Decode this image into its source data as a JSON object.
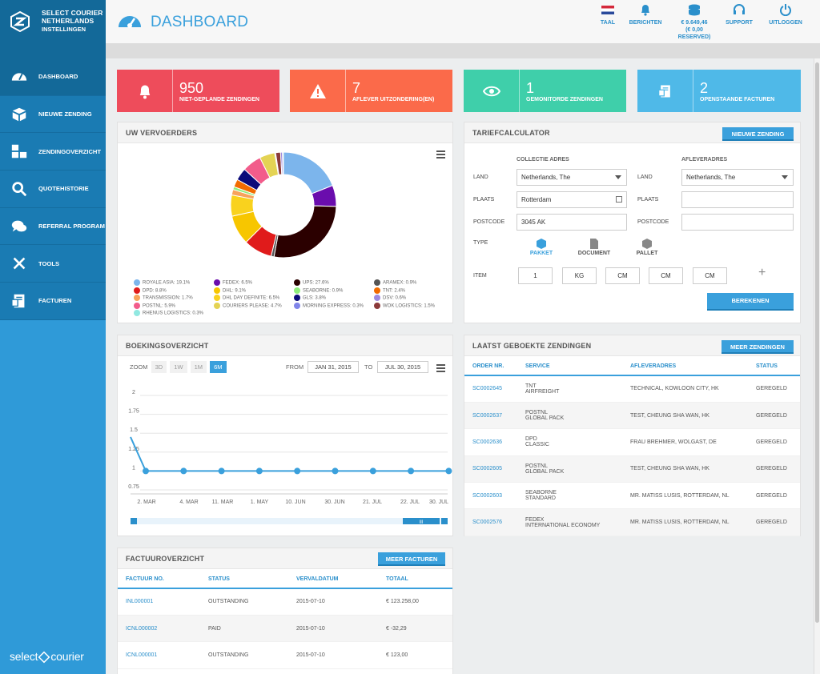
{
  "brand": {
    "line1": "SELECT COURIER",
    "line2": "NETHERLANDS",
    "sub": "INSTELLINGEN",
    "footer_left": "select",
    "footer_right": "courier"
  },
  "nav": [
    {
      "label": "DASHBOARD",
      "icon": "dashboard-icon"
    },
    {
      "label": "NIEUWE ZENDING",
      "icon": "box-icon"
    },
    {
      "label": "ZENDINGOVERZICHT",
      "icon": "boxes-icon"
    },
    {
      "label": "QUOTEHISTORIE",
      "icon": "search-icon"
    },
    {
      "label": "REFERRAL PROGRAM",
      "icon": "chat-icon"
    },
    {
      "label": "TOOLS",
      "icon": "tools-icon"
    },
    {
      "label": "FACTUREN",
      "icon": "invoice-icon"
    }
  ],
  "header": {
    "title": "DASHBOARD"
  },
  "top_actions": {
    "taal": "TAAL",
    "berichten": "BERICHTEN",
    "balance_1": "€ 9.649,46",
    "balance_2": "(€ 0,00",
    "balance_3": "RESERVED)",
    "support": "SUPPORT",
    "uitloggen": "UITLOGGEN"
  },
  "stats": [
    {
      "num": "950",
      "label": "NIET-GEPLANDE ZENDINGEN",
      "color": "#ee4c5b",
      "icon": "bell-icon"
    },
    {
      "num": "7",
      "label": "AFLEVER UITZONDERING(EN)",
      "color": "#fb6a4a",
      "icon": "warning-icon"
    },
    {
      "num": "1",
      "label": "GEMONITORDE ZENDINGEN",
      "color": "#3fcfaa",
      "icon": "eye-icon"
    },
    {
      "num": "2",
      "label": "OPENSTAANDE FACTUREN",
      "color": "#4fb9e8",
      "icon": "invoice-icon"
    }
  ],
  "carriers": {
    "title": "UW VERVOERDERS",
    "items": [
      {
        "label": "ROYALE ASIA: 19.1%",
        "value": 19.1,
        "color": "#7cb5ec"
      },
      {
        "label": "FEDEX: 6.5%",
        "value": 6.5,
        "color": "#6a0dad"
      },
      {
        "label": "UPS: 27.6%",
        "value": 27.6,
        "color": "#2b0000"
      },
      {
        "label": "ARAMEX: 0.9%",
        "value": 0.9,
        "color": "#555555"
      },
      {
        "label": "DPD: 8.8%",
        "value": 8.8,
        "color": "#e01b1b"
      },
      {
        "label": "DHL: 9.1%",
        "value": 9.1,
        "color": "#f7c600"
      },
      {
        "label": "SEABORNE: 0.9%",
        "value": 0.9,
        "color": "#90ed7d"
      },
      {
        "label": "TNT: 2.4%",
        "value": 2.4,
        "color": "#f26b00"
      },
      {
        "label": "TRANSMISSION: 1.7%",
        "value": 1.7,
        "color": "#f7a35c"
      },
      {
        "label": "DHL DAY DEFINITE: 6.5%",
        "value": 6.5,
        "color": "#f9d21e"
      },
      {
        "label": "GLS: 3.8%",
        "value": 3.8,
        "color": "#0b0b7a"
      },
      {
        "label": "DSV: 0.6%",
        "value": 0.6,
        "color": "#9e8be0"
      },
      {
        "label": "POSTNL: 5.9%",
        "value": 5.9,
        "color": "#f25c8b"
      },
      {
        "label": "COURIERS PLEASE: 4.7%",
        "value": 4.7,
        "color": "#e4d354"
      },
      {
        "label": "MORNING EXPRESS: 0.3%",
        "value": 0.3,
        "color": "#8085e9"
      },
      {
        "label": "WOK LOGISTICS: 1.5%",
        "value": 1.5,
        "color": "#8b3a3a"
      },
      {
        "label": "RHENUS LOGISTICS: 0.3%",
        "value": 0.3,
        "color": "#91e8e1"
      }
    ]
  },
  "calculator": {
    "title": "TARIEFCALCULATOR",
    "new_button": "NIEUWE ZENDING",
    "collectie": "COLLECTIE ADRES",
    "aflever": "AFLEVERADRES",
    "land": "LAND",
    "plaats": "PLAATS",
    "postcode": "POSTCODE",
    "type": "TYPE",
    "item": "ITEM",
    "from_country": "Netherlands, The",
    "to_country": "Netherlands, The",
    "from_city": "Rotterdam",
    "from_postcode": "3045 AK",
    "types": [
      "PAKKET",
      "DOCUMENT",
      "PALLET"
    ],
    "item_qty": "1",
    "item_unit": "KG",
    "cm1": "CM",
    "cm2": "CM",
    "cm3": "CM",
    "plus": "+",
    "calc_button": "BEREKENEN"
  },
  "booking": {
    "title": "BOEKINGSOVERZICHT",
    "zoom": "ZOOM",
    "zooms": [
      "3D",
      "1W",
      "1M",
      "6M"
    ],
    "from_label": "FROM",
    "from": "JAN 31, 2015",
    "to_label": "TO",
    "to": "JUL 30, 2015",
    "scroll_handle": "III"
  },
  "chart_data": {
    "type": "line",
    "y_ticks": [
      "2",
      "1.75",
      "1.5",
      "1.25",
      "1",
      "0.75"
    ],
    "ylim": [
      0.75,
      2
    ],
    "x_ticks": [
      "2. MAR",
      "4. MAR",
      "11. MAR",
      "1. MAY",
      "10. JUN",
      "30. JUN",
      "21. JUL",
      "22. JUL",
      "30. JUL"
    ],
    "series": [
      {
        "values": [
          1.45,
          1,
          1,
          1,
          1,
          1,
          1,
          1,
          1,
          1
        ]
      }
    ]
  },
  "recent": {
    "title": "LAATST GEBOEKTE ZENDINGEN",
    "more": "MEER ZENDINGEN",
    "headers": [
      "ORDER NR.",
      "SERVICE",
      "AFLEVERADRES",
      "STATUS"
    ],
    "rows": [
      [
        "SC0002645",
        "TNT",
        "AIRFREIGHT",
        "TECHNICAL, KOWLOON CITY, HK",
        "GEREGELD"
      ],
      [
        "SC0002637",
        "POSTNL",
        "GLOBAL PACK",
        "TEST, CHEUNG SHA WAN, HK",
        "GEREGELD"
      ],
      [
        "SC0002636",
        "DPD",
        "CLASSIC",
        "FRAU BREHMER, WOLGAST, DE",
        "GEREGELD"
      ],
      [
        "SC0002605",
        "POSTNL",
        "GLOBAL PACK",
        "TEST, CHEUNG SHA WAN, HK",
        "GEREGELD"
      ],
      [
        "SC0002603",
        "SEABORNE",
        "STANDARD",
        "MR. MATISS LUSIS, ROTTERDAM, NL",
        "GEREGELD"
      ],
      [
        "SC0002576",
        "FEDEX",
        "INTERNATIONAL ECONOMY",
        "MR. MATISS LUSIS, ROTTERDAM, NL",
        "GEREGELD"
      ]
    ]
  },
  "invoices": {
    "title": "FACTUUROVERZICHT",
    "more": "MEER FACTUREN",
    "headers": [
      "FACTUUR NO.",
      "STATUS",
      "VERVALDATUM",
      "TOTAAL"
    ],
    "rows": [
      [
        "INL000001",
        "OUTSTANDING",
        "2015-07-10",
        "€ 123.258,00"
      ],
      [
        "ICNL000002",
        "PAID",
        "2015-07-10",
        "€ -32,29"
      ],
      [
        "ICNL000001",
        "OUTSTANDING",
        "2015-07-10",
        "€ 123,00"
      ]
    ]
  }
}
